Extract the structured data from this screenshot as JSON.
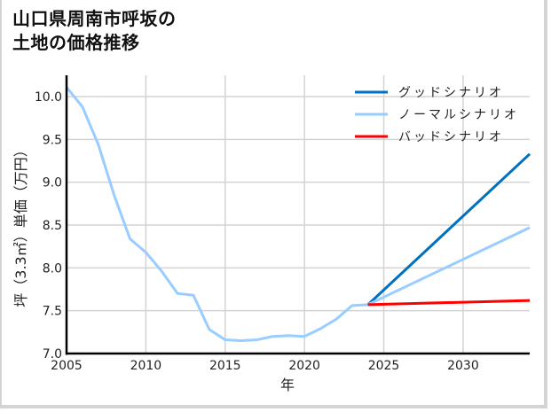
{
  "title_line1": "山口県周南市呼坂の",
  "title_line2": "土地の価格推移",
  "chart_data": {
    "type": "line",
    "title": "山口県周南市呼坂の土地の価格推移",
    "xlabel": "年",
    "ylabel": "坪（3.3㎡）単価（万円）",
    "xlim": [
      2005,
      2034.2
    ],
    "ylim": [
      7.0,
      10.25
    ],
    "x_ticks": [
      2005,
      2010,
      2015,
      2020,
      2025,
      2030
    ],
    "y_ticks": [
      7.0,
      7.5,
      8.0,
      8.5,
      9.0,
      9.5,
      10.0
    ],
    "grid": true,
    "legend_position": "upper right",
    "series": [
      {
        "name": "ノーマルシナリオ",
        "role": "historical",
        "color": "#99ccff",
        "x": [
          2005,
          2006,
          2007,
          2008,
          2009,
          2010,
          2011,
          2012,
          2013,
          2014,
          2015,
          2016,
          2017,
          2018,
          2019,
          2020,
          2021,
          2022,
          2023,
          2024
        ],
        "values": [
          10.11,
          9.88,
          9.44,
          8.85,
          8.34,
          8.18,
          7.96,
          7.7,
          7.68,
          7.28,
          7.16,
          7.15,
          7.16,
          7.2,
          7.21,
          7.2,
          7.29,
          7.4,
          7.56,
          7.57
        ]
      },
      {
        "name": "グッドシナリオ",
        "color": "#0070c0",
        "x": [
          2024,
          2034.2
        ],
        "values": [
          7.57,
          9.33
        ]
      },
      {
        "name": "ノーマルシナリオ",
        "color": "#99ccff",
        "x": [
          2024,
          2034.2
        ],
        "values": [
          7.57,
          8.47
        ]
      },
      {
        "name": "バッドシナリオ",
        "color": "#ff0000",
        "x": [
          2024,
          2034.2
        ],
        "values": [
          7.57,
          7.62
        ]
      }
    ],
    "legend": [
      {
        "label": "グッドシナリオ",
        "color": "#0070c0"
      },
      {
        "label": "ノーマルシナリオ",
        "color": "#99ccff"
      },
      {
        "label": "バッドシナリオ",
        "color": "#ff0000"
      }
    ]
  }
}
